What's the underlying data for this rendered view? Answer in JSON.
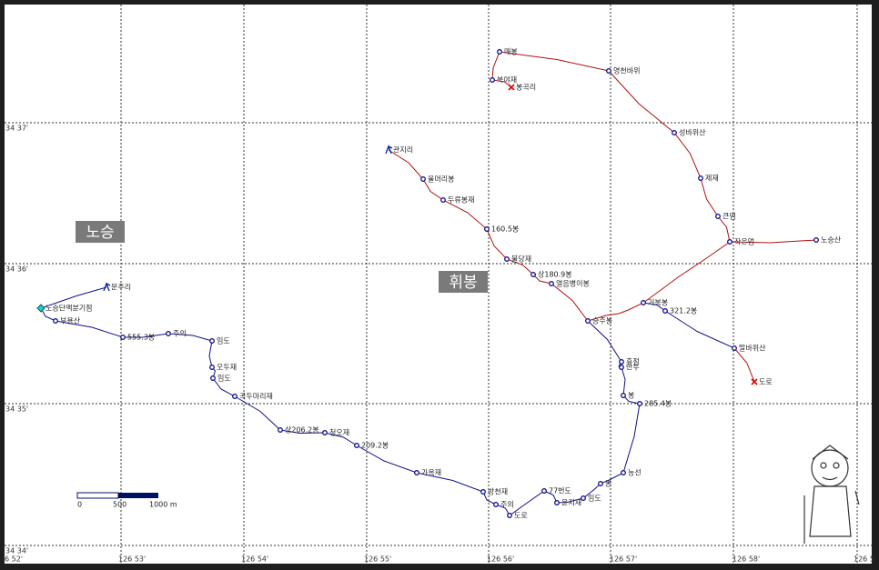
{
  "grid_labels": {
    "latitude": [
      "34 37'",
      "34 36'",
      "34 35'",
      "34 34'"
    ],
    "longitude": [
      "6 52'",
      "126 53'",
      "126 54'",
      "126 55'",
      "126 56'",
      "126 57'",
      "126 58'",
      "126 5"
    ]
  },
  "regions": [
    {
      "label": "노승"
    },
    {
      "label": "휘봉"
    }
  ],
  "waypoints": [
    {
      "label": "매봉"
    },
    {
      "label": "영천바위"
    },
    {
      "label": "북야재"
    },
    {
      "label": "봉곡리"
    },
    {
      "label": "성바위산"
    },
    {
      "label": "제재"
    },
    {
      "label": "큰멈"
    },
    {
      "label": "작은멈"
    },
    {
      "label": "노승산"
    },
    {
      "label": "관지리"
    },
    {
      "label": "율머리봉"
    },
    {
      "label": "두류봉재"
    },
    {
      "label": "160.5봉"
    },
    {
      "label": "불당재"
    },
    {
      "label": "상180.9봉"
    },
    {
      "label": "열음병이봉"
    },
    {
      "label": "승주봉"
    },
    {
      "label": "거북봉"
    },
    {
      "label": "321.2봉"
    },
    {
      "label": "말바위산"
    },
    {
      "label": "도로"
    },
    {
      "label": "휴점"
    },
    {
      "label": "만두"
    },
    {
      "label": "봉"
    },
    {
      "label": "285.4봉"
    },
    {
      "label": "능선"
    },
    {
      "label": "봉"
    },
    {
      "label": "임도"
    },
    {
      "label": "윤지재"
    },
    {
      "label": "77번도"
    },
    {
      "label": "도로"
    },
    {
      "label": "주의"
    },
    {
      "label": "방천재"
    },
    {
      "label": "가옥재"
    },
    {
      "label": "209.2봉"
    },
    {
      "label": "청오재"
    },
    {
      "label": "상206.2봉"
    },
    {
      "label": "곡두마리재"
    },
    {
      "label": "임도"
    },
    {
      "label": "오두재"
    },
    {
      "label": "임도"
    },
    {
      "label": "주의"
    },
    {
      "label": "555.3봉"
    },
    {
      "label": "부용산"
    },
    {
      "label": "노승단맥분기점"
    },
    {
      "label": "문주리"
    }
  ],
  "scale_bar": {
    "labels": [
      "0",
      "500",
      "1000 m"
    ]
  }
}
